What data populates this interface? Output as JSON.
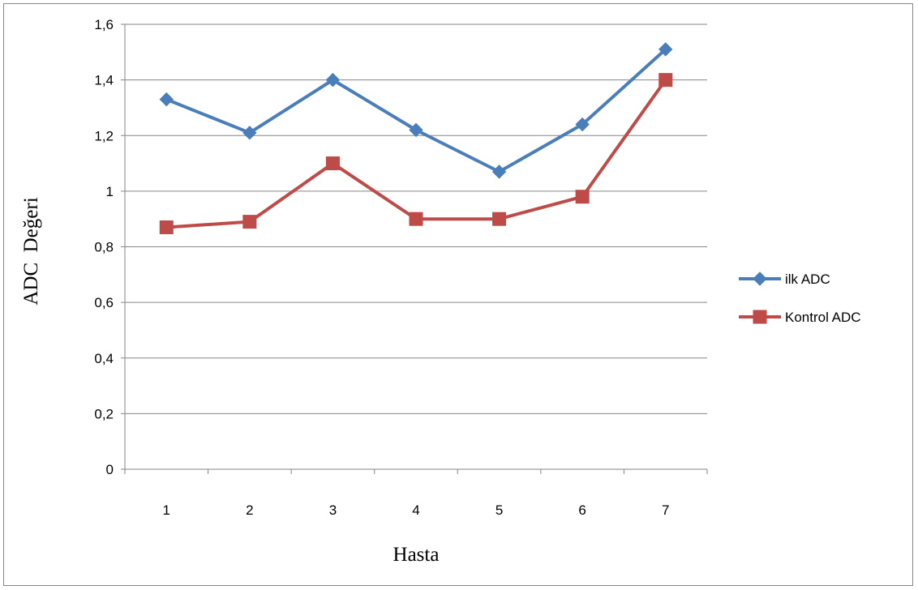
{
  "chart_data": {
    "type": "line",
    "categories": [
      "1",
      "2",
      "3",
      "4",
      "5",
      "6",
      "7"
    ],
    "xlabel": "Hasta",
    "ylabel": "ADC  Değeri",
    "ylim": [
      0,
      1.6
    ],
    "ytick_step": 0.2,
    "ytick_labels": [
      "0",
      "0,2",
      "0,4",
      "0,6",
      "0,8",
      "1",
      "1,2",
      "1,4",
      "1,6"
    ],
    "grid": true,
    "legend_position": "right",
    "series": [
      {
        "name": "ilk ADC",
        "values": [
          1.33,
          1.21,
          1.4,
          1.22,
          1.07,
          1.24,
          1.51
        ],
        "color": "#4a7ebb",
        "marker": "diamond"
      },
      {
        "name": "Kontrol ADC",
        "values": [
          0.87,
          0.89,
          1.1,
          0.9,
          0.9,
          0.98,
          1.4
        ],
        "color": "#be4b48",
        "marker": "square"
      }
    ]
  }
}
